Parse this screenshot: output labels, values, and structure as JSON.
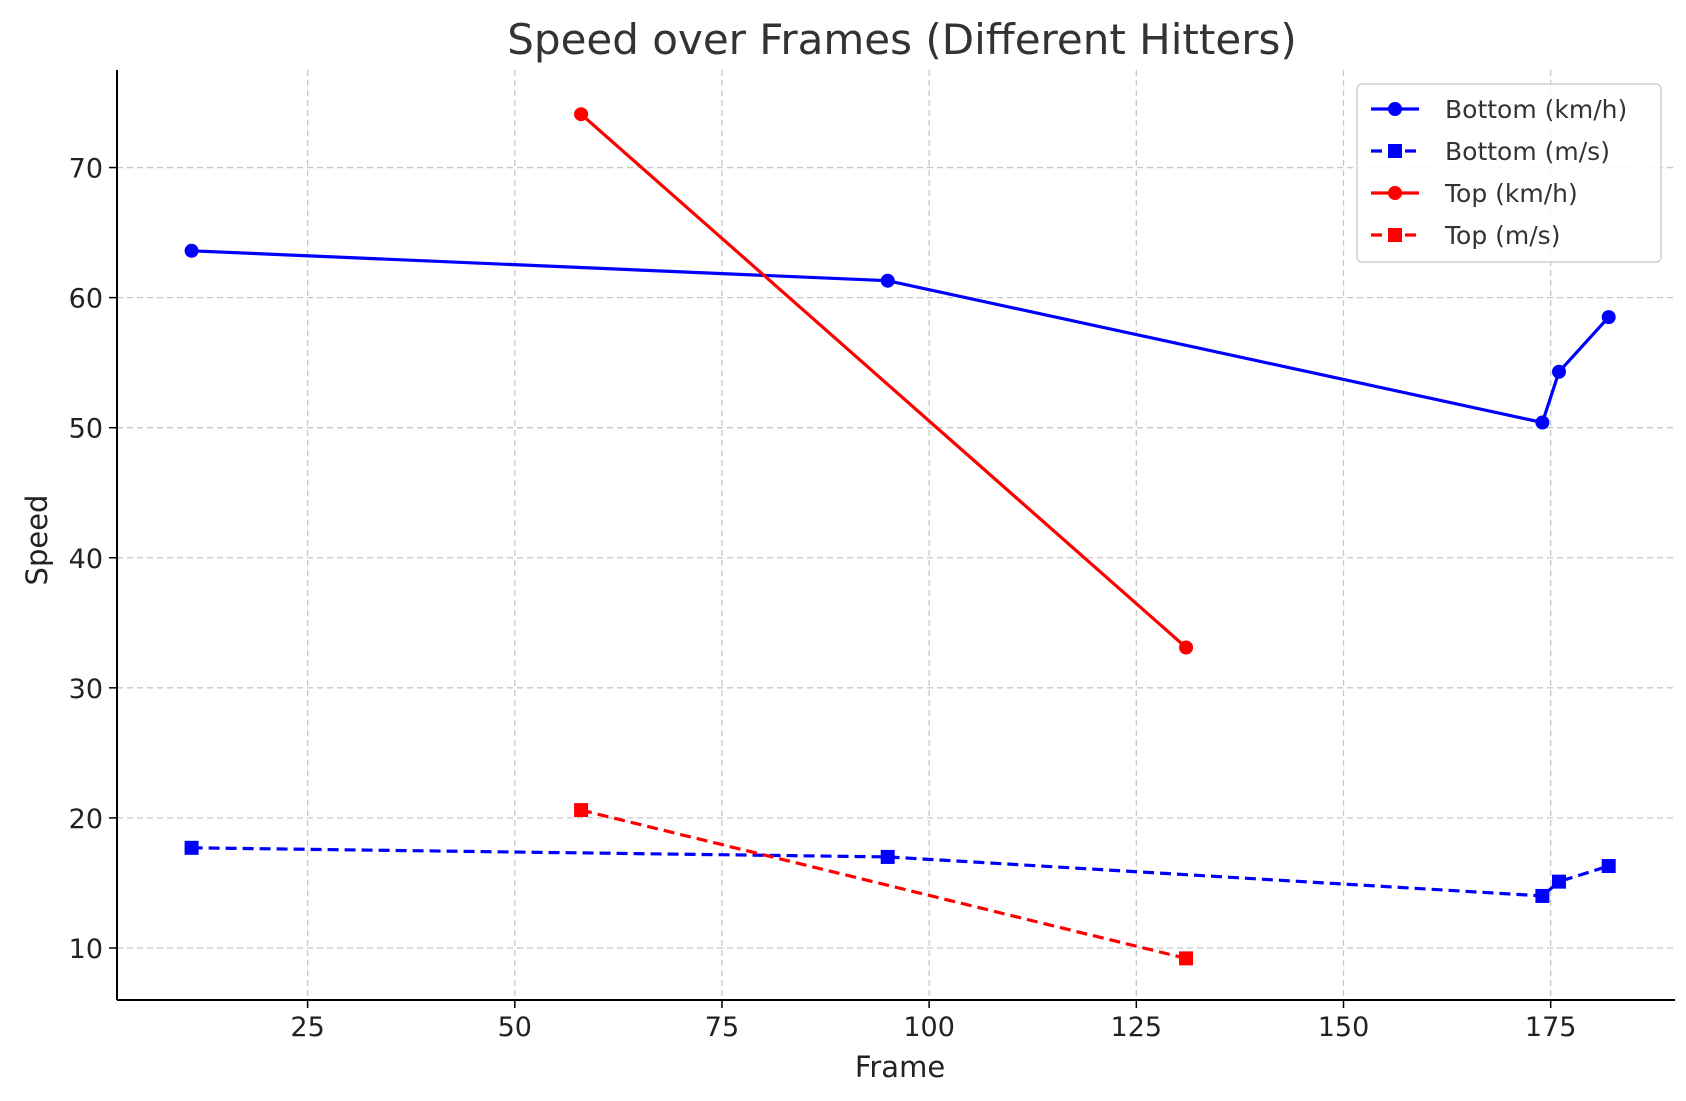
{
  "chart_data": {
    "type": "line",
    "title": "Speed over Frames (Different Hitters)",
    "xlabel": "Frame",
    "ylabel": "Speed",
    "xlim": [
      2,
      190
    ],
    "ylim": [
      6,
      77.5
    ],
    "xticks": [
      25,
      50,
      75,
      100,
      125,
      150,
      175
    ],
    "yticks": [
      10,
      20,
      30,
      40,
      50,
      60,
      70
    ],
    "grid": true,
    "legend_position": "top-right",
    "series": [
      {
        "name": "Bottom (km/h)",
        "color": "#0000ff",
        "line_style": "solid",
        "marker": "circle",
        "x": [
          11,
          95,
          174,
          176,
          182
        ],
        "y": [
          63.6,
          61.3,
          50.4,
          54.3,
          58.5
        ]
      },
      {
        "name": "Bottom (m/s)",
        "color": "#0000ff",
        "line_style": "dashed",
        "marker": "square",
        "x": [
          11,
          95,
          174,
          176,
          182
        ],
        "y": [
          17.7,
          17.0,
          14.0,
          15.1,
          16.3
        ]
      },
      {
        "name": "Top (km/h)",
        "color": "#ff0000",
        "line_style": "solid",
        "marker": "circle",
        "x": [
          58,
          131
        ],
        "y": [
          74.1,
          33.1
        ]
      },
      {
        "name": "Top (m/s)",
        "color": "#ff0000",
        "line_style": "dashed",
        "marker": "square",
        "x": [
          58,
          131
        ],
        "y": [
          20.6,
          9.2
        ]
      }
    ]
  }
}
